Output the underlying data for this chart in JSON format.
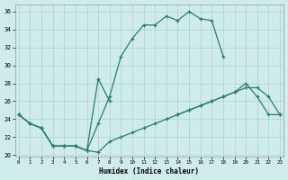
{
  "xlabel": "Humidex (Indice chaleur)",
  "bg_color": "#d0ecea",
  "grid_color": "#a8d4d0",
  "line_color": "#2a7c72",
  "xlim": [
    -0.3,
    23.3
  ],
  "ylim": [
    19.8,
    36.8
  ],
  "xticks": [
    0,
    1,
    2,
    3,
    4,
    5,
    6,
    7,
    8,
    9,
    10,
    11,
    12,
    13,
    14,
    15,
    16,
    17,
    18,
    19,
    20,
    21,
    22,
    23
  ],
  "yticks": [
    20,
    22,
    24,
    26,
    28,
    30,
    32,
    34,
    36
  ],
  "series": [
    {
      "x": [
        0,
        1,
        2,
        3,
        4,
        5,
        6,
        7,
        8,
        9,
        10,
        11,
        12,
        13,
        14,
        15,
        16,
        17,
        18
      ],
      "y": [
        24.5,
        23.5,
        23.0,
        21.0,
        21.0,
        21.0,
        20.5,
        23.5,
        26.5,
        31.0,
        33.0,
        34.5,
        34.5,
        35.5,
        35.0,
        36.0,
        35.2,
        35.0,
        31.0
      ]
    },
    {
      "x": [
        0,
        1,
        2,
        3,
        4,
        5,
        6,
        7,
        8
      ],
      "y": [
        24.5,
        23.5,
        23.0,
        21.0,
        21.0,
        21.0,
        20.5,
        28.5,
        26.0
      ]
    },
    {
      "x": [
        0,
        1,
        2,
        3,
        4,
        5,
        6,
        7,
        8,
        9,
        10,
        11,
        12,
        13,
        14,
        15,
        16,
        17,
        18,
        19,
        20,
        21,
        22,
        23
      ],
      "y": [
        24.5,
        23.5,
        23.0,
        21.0,
        21.0,
        21.0,
        20.5,
        20.3,
        21.5,
        22.0,
        22.5,
        23.0,
        23.5,
        24.0,
        24.5,
        25.0,
        25.5,
        26.0,
        26.5,
        27.0,
        27.5,
        27.5,
        26.5,
        24.5
      ]
    },
    {
      "x": [
        14,
        15,
        16,
        17,
        18,
        19,
        20,
        21,
        22,
        23
      ],
      "y": [
        24.5,
        25.0,
        25.5,
        26.0,
        26.5,
        27.0,
        28.0,
        26.5,
        24.5,
        24.5
      ]
    }
  ]
}
